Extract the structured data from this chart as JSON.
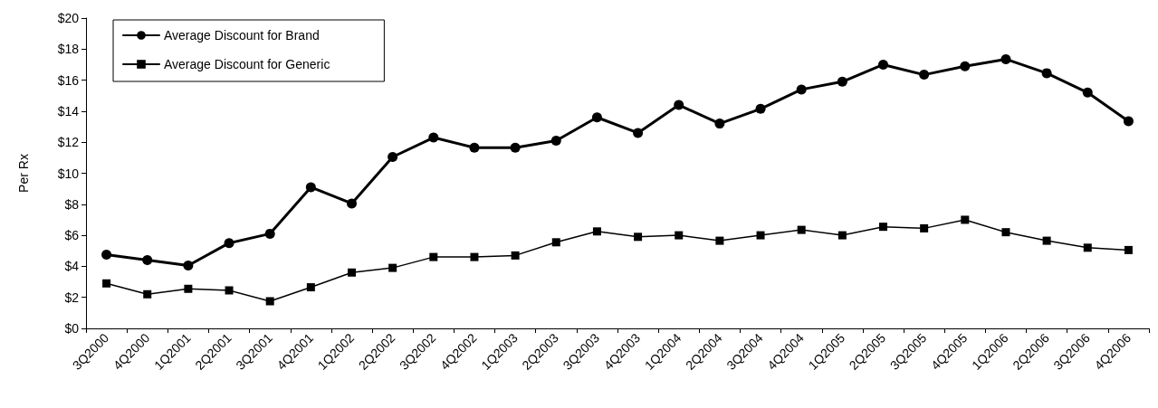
{
  "chart_data": {
    "type": "line",
    "ylabel": "Per Rx",
    "categories": [
      "3Q2000",
      "4Q2000",
      "1Q2001",
      "2Q2001",
      "3Q2001",
      "4Q2001",
      "1Q2002",
      "2Q2002",
      "3Q2002",
      "4Q2002",
      "1Q2003",
      "2Q2003",
      "3Q2003",
      "4Q2003",
      "1Q2004",
      "2Q2004",
      "3Q2004",
      "4Q2004",
      "1Q2005",
      "2Q2005",
      "3Q2005",
      "4Q2005",
      "1Q2006",
      "2Q2006",
      "3Q2006",
      "4Q2006"
    ],
    "series": [
      {
        "name": "Average Discount for Brand",
        "color": "#000000",
        "marker": "circle",
        "values": [
          4.75,
          4.4,
          4.05,
          5.5,
          6.1,
          9.1,
          8.05,
          11.05,
          12.3,
          11.65,
          11.65,
          12.1,
          13.6,
          12.6,
          14.4,
          13.2,
          14.15,
          15.4,
          15.9,
          17.0,
          16.35,
          16.9,
          17.35,
          16.45,
          15.2,
          13.35
        ]
      },
      {
        "name": "Average Discount for Generic",
        "color": "#000000",
        "marker": "square",
        "values": [
          2.9,
          2.2,
          2.55,
          2.45,
          1.75,
          2.65,
          3.6,
          3.9,
          4.6,
          4.6,
          4.7,
          5.55,
          6.25,
          5.9,
          6.0,
          5.65,
          6.0,
          6.35,
          6.0,
          6.55,
          6.45,
          7.0,
          6.2,
          5.65,
          5.2,
          5.05
        ]
      }
    ],
    "ylim": [
      0,
      20
    ],
    "yticks": [
      {
        "value": 0,
        "label": "$0"
      },
      {
        "value": 2,
        "label": "$2"
      },
      {
        "value": 4,
        "label": "$4"
      },
      {
        "value": 6,
        "label": "$6"
      },
      {
        "value": 8,
        "label": "$8"
      },
      {
        "value": 10,
        "label": "$10"
      },
      {
        "value": 12,
        "label": "$12"
      },
      {
        "value": 14,
        "label": "$14"
      },
      {
        "value": 16,
        "label": "$16"
      },
      {
        "value": 18,
        "label": "$18"
      },
      {
        "value": 20,
        "label": "$20"
      }
    ],
    "grid": false,
    "legend": "top left",
    "line_style": "solid"
  }
}
